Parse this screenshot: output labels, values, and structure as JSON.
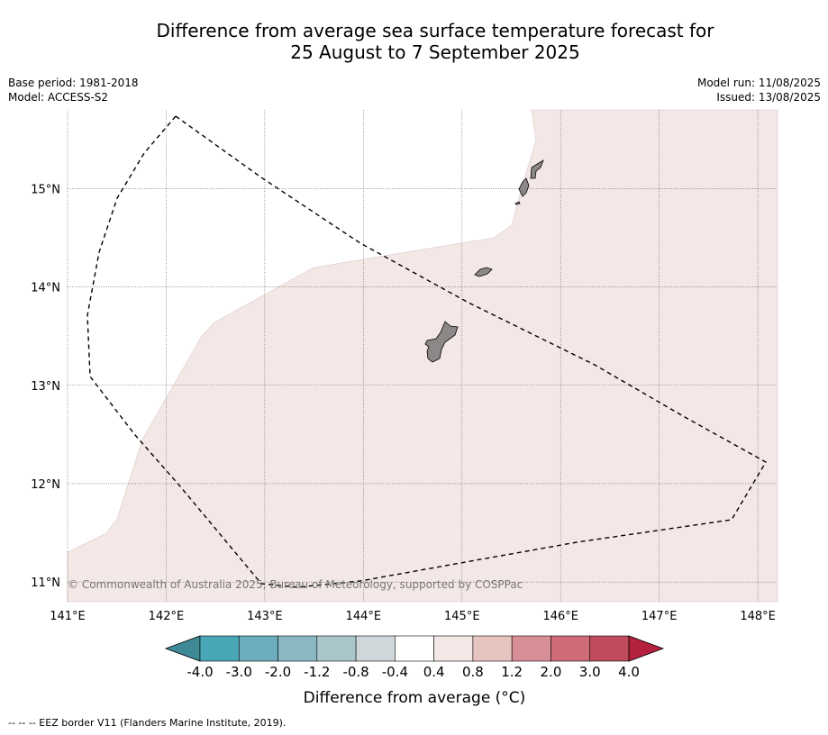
{
  "title_line1": "Difference from average sea surface temperature forecast for",
  "title_line2": "25 August to 7 September 2025",
  "meta_left": [
    "Base period: 1981-2018",
    "Model: ACCESS-S2"
  ],
  "meta_right": [
    "Model run: 11/08/2025",
    "Issued: 13/08/2025"
  ],
  "map": {
    "lon_range": [
      141.0,
      148.2
    ],
    "lat_range": [
      10.8,
      15.8
    ],
    "lon_ticks": [
      141,
      142,
      143,
      144,
      145,
      146,
      147,
      148
    ],
    "lon_labels": [
      "141°E",
      "142°E",
      "143°E",
      "144°E",
      "145°E",
      "146°E",
      "147°E",
      "148°E"
    ],
    "lat_ticks": [
      11,
      12,
      13,
      14,
      15
    ],
    "lat_labels": [
      "11°N",
      "12°N",
      "13°N",
      "14°N",
      "15°N"
    ],
    "ocean_fill_color": "#f4e8e6",
    "land_color": "#8c8888",
    "eez_border_style": "dashed",
    "copyright": "© Commonwealth of Australia 2025, Bureau of Meteorology, supported by COSPPac"
  },
  "colorbar": {
    "label": "Difference from average (°C)",
    "tick_labels": [
      "-4.0",
      "-3.0",
      "-2.0",
      "-1.2",
      "-0.8",
      "-0.4",
      "0.4",
      "0.8",
      "1.2",
      "2.0",
      "3.0",
      "4.0"
    ],
    "under_color": "#3e8a96",
    "over_color": "#b3213e",
    "colors": [
      "#49a6b7",
      "#6caebd",
      "#8ab8c2",
      "#a9c6cb",
      "#d0d7da",
      "#ffffff",
      "#f4e8e6",
      "#e8c4c1",
      "#d88e96",
      "#cf6a77",
      "#c04b5c"
    ]
  },
  "legend_note": "--  --  -- EEZ border V11 (Flanders Marine Institute, 2019)."
}
